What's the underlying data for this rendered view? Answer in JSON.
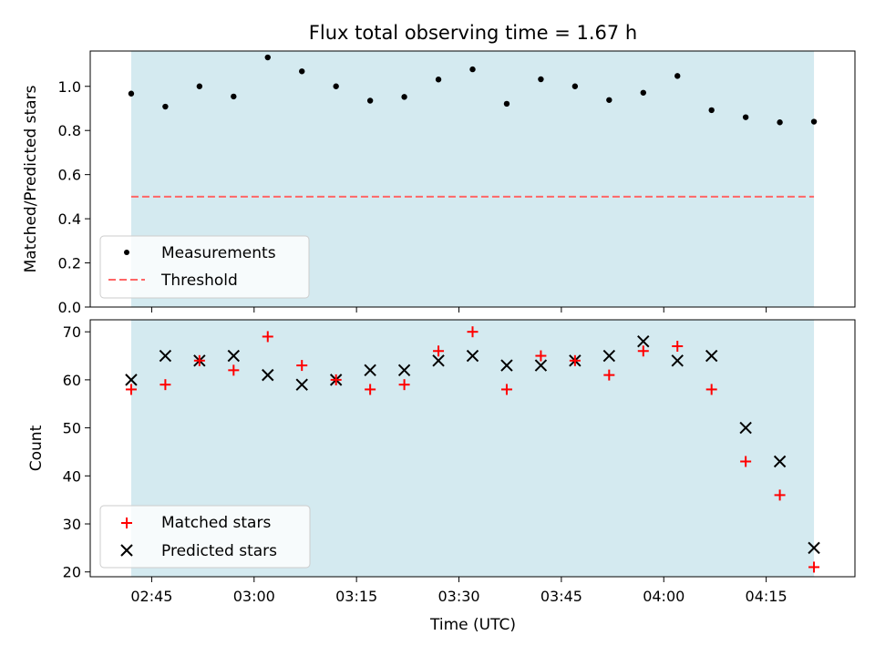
{
  "chart_data": [
    {
      "type": "scatter",
      "title": "Flux total observing time = 1.67 h",
      "xlabel": "",
      "ylabel": "Matched/Predicted stars",
      "ylim": [
        0.0,
        1.16
      ],
      "y_ticks": [
        "0.0",
        "0.2",
        "0.4",
        "0.6",
        "0.8",
        "1.0"
      ],
      "x": [
        "02:42",
        "02:47",
        "02:52",
        "02:57",
        "03:02",
        "03:07",
        "03:12",
        "03:17",
        "03:22",
        "03:27",
        "03:32",
        "03:37",
        "03:42",
        "03:47",
        "03:52",
        "03:57",
        "04:02",
        "04:07",
        "04:12",
        "04:17",
        "04:22"
      ],
      "series": [
        {
          "name": "Measurements",
          "color": "#000000",
          "marker": "dot",
          "values": [
            0.967,
            0.908,
            1.0,
            0.954,
            1.131,
            1.068,
            1.0,
            0.935,
            0.952,
            1.031,
            1.077,
            0.921,
            1.032,
            1.0,
            0.938,
            0.971,
            1.047,
            0.892,
            0.86,
            0.837,
            0.84
          ]
        },
        {
          "name": "Threshold",
          "color": "#ff6666",
          "style": "dashed",
          "value": 0.5
        }
      ],
      "shaded_span": {
        "from": "02:42",
        "to": "04:22",
        "color": "#d4eaf0"
      },
      "legend": "lower-left"
    },
    {
      "type": "scatter",
      "title": "",
      "xlabel": "Time (UTC)",
      "ylabel": "Count",
      "ylim": [
        19,
        72.5
      ],
      "y_ticks": [
        "20",
        "30",
        "40",
        "50",
        "60",
        "70"
      ],
      "x_ticks": [
        "02:45",
        "03:00",
        "03:15",
        "03:30",
        "03:45",
        "04:00",
        "04:15"
      ],
      "x": [
        "02:42",
        "02:47",
        "02:52",
        "02:57",
        "03:02",
        "03:07",
        "03:12",
        "03:17",
        "03:22",
        "03:27",
        "03:32",
        "03:37",
        "03:42",
        "03:47",
        "03:52",
        "03:57",
        "04:02",
        "04:07",
        "04:12",
        "04:17",
        "04:22"
      ],
      "series": [
        {
          "name": "Matched stars",
          "color": "#ff0000",
          "marker": "plus",
          "values": [
            58,
            59,
            64,
            62,
            69,
            63,
            60,
            58,
            59,
            66,
            70,
            58,
            65,
            64,
            61,
            66,
            67,
            58,
            43,
            36,
            21
          ]
        },
        {
          "name": "Predicted stars",
          "color": "#000000",
          "marker": "x",
          "values": [
            60,
            65,
            64,
            65,
            61,
            59,
            60,
            62,
            62,
            64,
            65,
            63,
            63,
            64,
            65,
            68,
            64,
            65,
            50,
            43,
            25
          ]
        }
      ],
      "shaded_span": {
        "from": "02:42",
        "to": "04:22",
        "color": "#d4eaf0"
      },
      "legend": "lower-left"
    }
  ]
}
